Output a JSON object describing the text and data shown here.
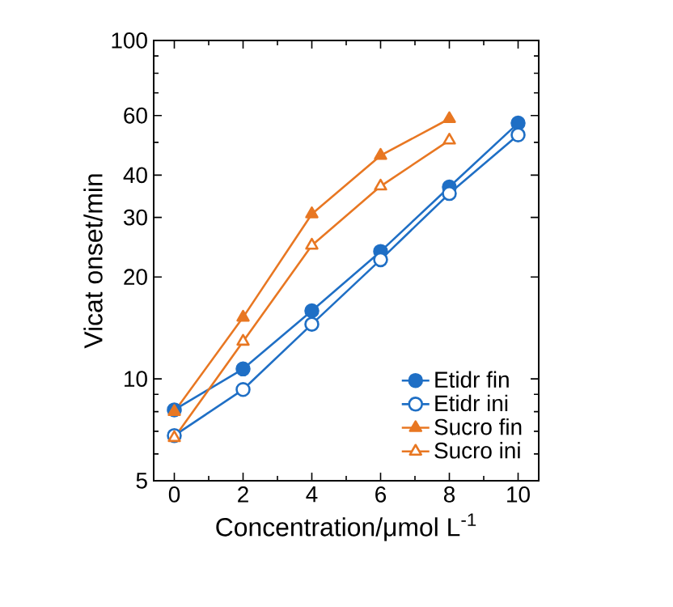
{
  "chart_data": {
    "type": "line",
    "xlabel": "Concentration/μmol L$^{-1}$",
    "ylabel": "Vicat onset/min",
    "log": "y",
    "xlim": [
      -0.6,
      10.6
    ],
    "ylim": [
      5,
      100
    ],
    "xticks": [
      0,
      2,
      4,
      6,
      8,
      10
    ],
    "yticks": [
      5,
      10,
      20,
      30,
      40,
      60,
      100
    ],
    "legend": "bottom right",
    "grid": false,
    "series": [
      {
        "name": "Etidr fin",
        "color": "#1f6fc5",
        "marker": "circle",
        "x": [
          0,
          2,
          4,
          6,
          8,
          10
        ],
        "values": [
          8.1,
          10.7,
          15.9,
          23.8,
          36.9,
          57
        ]
      },
      {
        "name": "Etidr ini",
        "color": "#1f6fc5",
        "marker": "circle",
        "x": [
          0,
          2,
          4,
          6,
          8,
          10
        ],
        "values": [
          6.8,
          9.3,
          14.5,
          22.5,
          35.3,
          52.6
        ]
      },
      {
        "name": "Sucro fin",
        "color": "#e87722",
        "marker": "triangle",
        "x": [
          0,
          2,
          4,
          6,
          8
        ],
        "values": [
          8.0,
          15.2,
          30.7,
          45.7,
          58.7
        ]
      },
      {
        "name": "Sucro ini",
        "color": "#e87722",
        "marker": "triangle",
        "x": [
          0,
          2,
          4,
          6,
          8
        ],
        "values": [
          6.7,
          12.9,
          24.8,
          37.1,
          50.7
        ]
      }
    ]
  }
}
